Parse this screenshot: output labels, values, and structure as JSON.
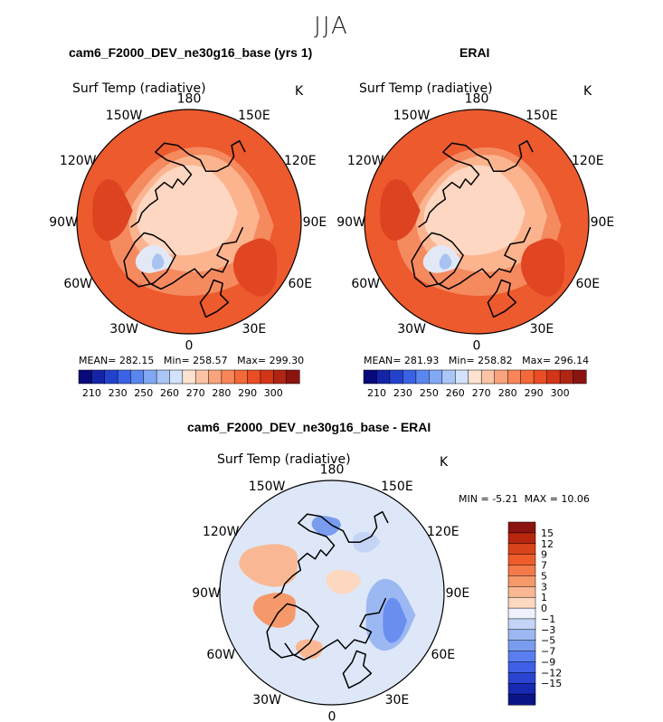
{
  "suptitle": "JJA",
  "chart_data": [
    {
      "type": "heatmap",
      "projection": "polar stereographic (north)",
      "title": "cam6_F2000_DEV_ne30g16_base (yrs 1)",
      "variable": "Surf Temp (radiative)",
      "units": "K",
      "lon_labels": [
        "180",
        "150E",
        "120E",
        "90E",
        "60E",
        "30E",
        "0",
        "30W",
        "60W",
        "90W",
        "120W",
        "150W"
      ],
      "stats": {
        "mean_label": "MEAN=",
        "mean": "282.15",
        "min_label": "Min=",
        "min": "258.57",
        "max_label": "Max=",
        "max": "299.30"
      },
      "colorbar": {
        "colors": [
          "#08097a",
          "#1424a8",
          "#2342cc",
          "#3a62e6",
          "#5a86f0",
          "#80a8f4",
          "#aac6f7",
          "#d2e2fb",
          "#fde2d0",
          "#fcc4a6",
          "#f9a47c",
          "#f88658",
          "#f4693a",
          "#ea4c24",
          "#d33519",
          "#b02414",
          "#8a1410"
        ],
        "tick_labels": [
          "210",
          "230",
          "250",
          "260",
          "270",
          "280",
          "290",
          "300"
        ]
      }
    },
    {
      "type": "heatmap",
      "projection": "polar stereographic (north)",
      "title": "ERAI",
      "variable": "Surf Temp (radiative)",
      "units": "K",
      "lon_labels": [
        "180",
        "150E",
        "120E",
        "90E",
        "60E",
        "30E",
        "0",
        "30W",
        "60W",
        "90W",
        "120W",
        "150W"
      ],
      "stats": {
        "mean_label": "MEAN=",
        "mean": "281.93",
        "min_label": "Min=",
        "min": "258.82",
        "max_label": "Max=",
        "max": "296.14"
      },
      "colorbar": {
        "colors": [
          "#08097a",
          "#1424a8",
          "#2342cc",
          "#3a62e6",
          "#5a86f0",
          "#80a8f4",
          "#aac6f7",
          "#d2e2fb",
          "#fde2d0",
          "#fcc4a6",
          "#f9a47c",
          "#f88658",
          "#f4693a",
          "#ea4c24",
          "#d33519",
          "#b02414",
          "#8a1410"
        ],
        "tick_labels": [
          "210",
          "230",
          "250",
          "260",
          "270",
          "280",
          "290",
          "300"
        ]
      }
    },
    {
      "type": "heatmap",
      "projection": "polar stereographic (north)",
      "title": "cam6_F2000_DEV_ne30g16_base - ERAI",
      "variable": "Surf Temp (radiative)",
      "units": "K",
      "lon_labels": [
        "180",
        "150E",
        "120E",
        "90E",
        "60E",
        "30E",
        "0",
        "30W",
        "60W",
        "90W",
        "120W",
        "150W"
      ],
      "stats": {
        "min_label": "MIN =",
        "min": "-5.21",
        "max_label": "MAX =",
        "max": "10.06"
      },
      "colorbar": {
        "colors": [
          "#8b1410",
          "#b7260f",
          "#d9431a",
          "#ee5c2a",
          "#f37a48",
          "#f6996a",
          "#f9b893",
          "#fcd8c0",
          "#eef1fb",
          "#c4d4f6",
          "#9cb8f2",
          "#7a9cef",
          "#5a7ef0",
          "#3f60e6",
          "#2a44d2",
          "#1629b0",
          "#0a1486"
        ],
        "tick_labels": [
          "15",
          "12",
          "9",
          "7",
          "5",
          "3",
          "1",
          "0",
          "−1",
          "−3",
          "−5",
          "−7",
          "−9",
          "−12",
          "−15"
        ]
      }
    }
  ]
}
